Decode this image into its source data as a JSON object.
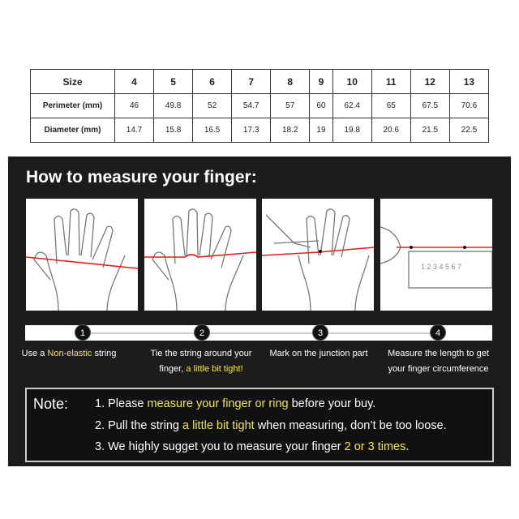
{
  "table": {
    "header": [
      "Size",
      "4",
      "5",
      "6",
      "7",
      "8",
      "9",
      "10",
      "11",
      "12",
      "13"
    ],
    "rows": [
      [
        "Perimeter (mm)",
        "46",
        "49.8",
        "52",
        "54.7",
        "57",
        "60",
        "62.4",
        "65",
        "67.5",
        "70.6"
      ],
      [
        "Diameter (mm)",
        "14.7",
        "15.8",
        "16.5",
        "17.3",
        "18.2",
        "19",
        "19.8",
        "20.6",
        "21.5",
        "22.5"
      ]
    ]
  },
  "title": "How to measure your finger:",
  "steps": [
    {
      "num": "1",
      "pre": "Use a ",
      "hl": "Non-elastic",
      "post": " string"
    },
    {
      "num": "2",
      "pre": "Tie the string around your finger, ",
      "hl": "a little bit tight!",
      "post": ""
    },
    {
      "num": "3",
      "pre": "Mark on the junction part",
      "hl": "",
      "post": ""
    },
    {
      "num": "4",
      "pre": "Measure the length to get your finger circumference",
      "hl": "",
      "post": ""
    }
  ],
  "ruler_ticks": "1 2 3 4 5 6 7",
  "note": {
    "label": "Note:",
    "lines": [
      {
        "pre": "1. Please ",
        "hl": "measure your finger or ring",
        "post": " before your buy."
      },
      {
        "pre": "2. Pull the string ",
        "hl": "a little bit tight",
        "post": " when measuring, don’t be too loose."
      },
      {
        "pre": "3. We highly sugget you to measure your finger ",
        "hl": "2 or 3 times",
        "post": "."
      }
    ]
  },
  "colors": {
    "highlight": "#f0e64c",
    "string": "#e0201c",
    "panel": "#1c1c1c"
  }
}
